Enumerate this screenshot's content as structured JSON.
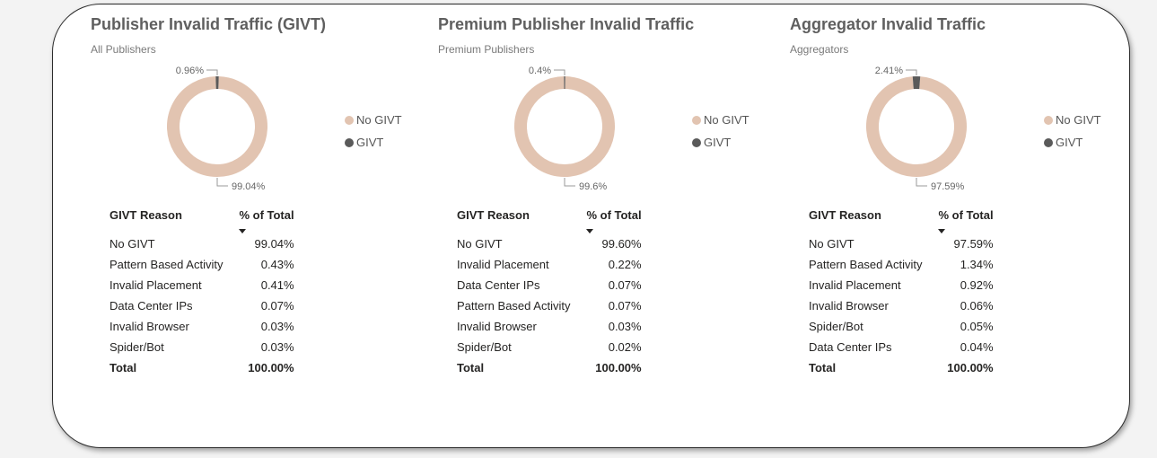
{
  "colors": {
    "no_givt": "#e2c4b1",
    "givt": "#5a5a5a"
  },
  "panels": [
    {
      "title": "Publisher Invalid Traffic (GIVT)",
      "subtitle": "All Publishers",
      "legend": [
        "No GIVT",
        "GIVT"
      ],
      "table": {
        "col1": "GIVT Reason",
        "col2": "% of Total",
        "rows": [
          {
            "reason": "No GIVT",
            "pct": "99.04%"
          },
          {
            "reason": "Pattern Based Activity",
            "pct": "0.43%"
          },
          {
            "reason": "Invalid Placement",
            "pct": "0.41%"
          },
          {
            "reason": "Data Center IPs",
            "pct": "0.07%"
          },
          {
            "reason": "Invalid Browser",
            "pct": "0.03%"
          },
          {
            "reason": "Spider/Bot",
            "pct": "0.03%"
          }
        ],
        "total_label": "Total",
        "total_value": "100.00%"
      }
    },
    {
      "title": "Premium Publisher Invalid Traffic",
      "subtitle": "Premium Publishers",
      "legend": [
        "No GIVT",
        "GIVT"
      ],
      "table": {
        "col1": "GIVT Reason",
        "col2": "% of Total",
        "rows": [
          {
            "reason": "No GIVT",
            "pct": "99.60%"
          },
          {
            "reason": "Invalid Placement",
            "pct": "0.22%"
          },
          {
            "reason": "Data Center IPs",
            "pct": "0.07%"
          },
          {
            "reason": "Pattern Based Activity",
            "pct": "0.07%"
          },
          {
            "reason": "Invalid Browser",
            "pct": "0.03%"
          },
          {
            "reason": "Spider/Bot",
            "pct": "0.02%"
          }
        ],
        "total_label": "Total",
        "total_value": "100.00%"
      }
    },
    {
      "title": "Aggregator Invalid Traffic",
      "subtitle": "Aggregators",
      "legend": [
        "No GIVT",
        "GIVT"
      ],
      "table": {
        "col1": "GIVT Reason",
        "col2": "% of Total",
        "rows": [
          {
            "reason": "No GIVT",
            "pct": "97.59%"
          },
          {
            "reason": "Pattern Based Activity",
            "pct": "1.34%"
          },
          {
            "reason": "Invalid Placement",
            "pct": "0.92%"
          },
          {
            "reason": "Invalid Browser",
            "pct": "0.06%"
          },
          {
            "reason": "Spider/Bot",
            "pct": "0.05%"
          },
          {
            "reason": "Data Center IPs",
            "pct": "0.04%"
          }
        ],
        "total_label": "Total",
        "total_value": "100.00%"
      }
    }
  ],
  "chart_data": [
    {
      "type": "pie",
      "donut": true,
      "categories": [
        "No GIVT",
        "GIVT"
      ],
      "values": [
        99.04,
        0.96
      ],
      "data_labels": [
        "99.04%",
        "0.96%"
      ],
      "title": "Publisher Invalid Traffic (GIVT)",
      "subtitle": "All Publishers",
      "legend": "right"
    },
    {
      "type": "pie",
      "donut": true,
      "categories": [
        "No GIVT",
        "GIVT"
      ],
      "values": [
        99.6,
        0.4
      ],
      "data_labels": [
        "99.6%",
        "0.4%"
      ],
      "title": "Premium Publisher Invalid Traffic",
      "subtitle": "Premium Publishers",
      "legend": "right"
    },
    {
      "type": "pie",
      "donut": true,
      "categories": [
        "No GIVT",
        "GIVT"
      ],
      "values": [
        97.59,
        2.41
      ],
      "data_labels": [
        "97.59%",
        "2.41%"
      ],
      "title": "Aggregator Invalid Traffic",
      "subtitle": "Aggregators",
      "legend": "right"
    }
  ]
}
